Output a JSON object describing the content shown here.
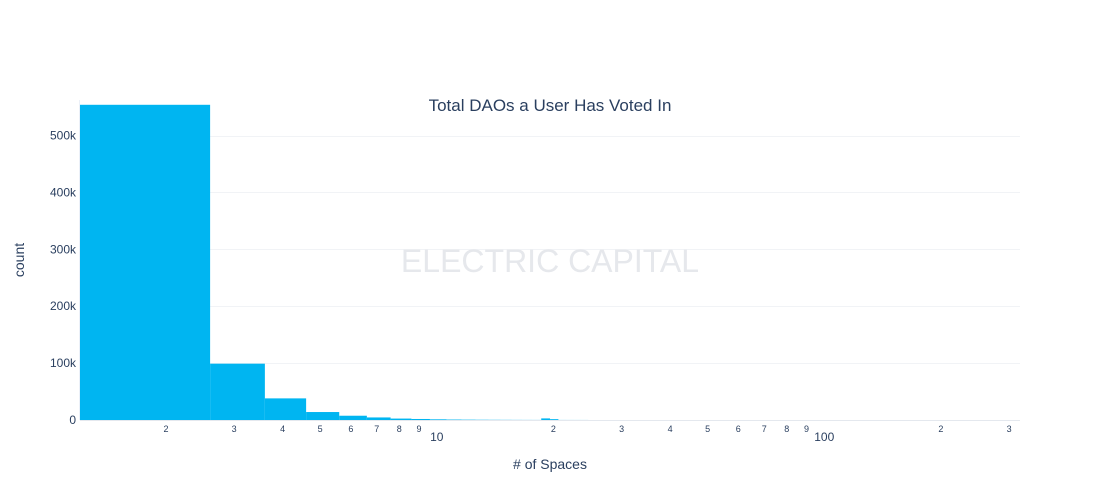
{
  "chart_data": {
    "type": "bar",
    "title": "Total DAOs a User Has Voted In",
    "xlabel": "# of Spaces",
    "ylabel": "count",
    "watermark": "ELECTRIC CAPITAL",
    "x_scale": "log",
    "xlim": [
      1.2,
      320
    ],
    "ylim": [
      0,
      580000
    ],
    "grid": true,
    "bar_color": "#00b5f1",
    "y_ticks": [
      {
        "value": 0,
        "label": "0"
      },
      {
        "value": 100000,
        "label": "100k"
      },
      {
        "value": 200000,
        "label": "200k"
      },
      {
        "value": 300000,
        "label": "300k"
      },
      {
        "value": 400000,
        "label": "400k"
      },
      {
        "value": 500000,
        "label": "500k"
      }
    ],
    "x_minor_ticks": [
      {
        "value": 2,
        "label": "2"
      },
      {
        "value": 3,
        "label": "3"
      },
      {
        "value": 4,
        "label": "4"
      },
      {
        "value": 5,
        "label": "5"
      },
      {
        "value": 6,
        "label": "6"
      },
      {
        "value": 7,
        "label": "7"
      },
      {
        "value": 8,
        "label": "8"
      },
      {
        "value": 9,
        "label": "9"
      },
      {
        "value": 20,
        "label": "2"
      },
      {
        "value": 30,
        "label": "3"
      },
      {
        "value": 40,
        "label": "4"
      },
      {
        "value": 50,
        "label": "5"
      },
      {
        "value": 60,
        "label": "6"
      },
      {
        "value": 70,
        "label": "7"
      },
      {
        "value": 80,
        "label": "8"
      },
      {
        "value": 90,
        "label": "9"
      },
      {
        "value": 200,
        "label": "2"
      },
      {
        "value": 300,
        "label": "3"
      }
    ],
    "x_major_ticks": [
      {
        "value": 10,
        "label": "10"
      },
      {
        "value": 100,
        "label": "100"
      }
    ],
    "bins": [
      {
        "x0": 1.2,
        "x1": 2.6,
        "count": 554000
      },
      {
        "x0": 2.6,
        "x1": 3.6,
        "count": 99000
      },
      {
        "x0": 3.6,
        "x1": 4.6,
        "count": 38000
      },
      {
        "x0": 4.6,
        "x1": 5.6,
        "count": 14000
      },
      {
        "x0": 5.6,
        "x1": 6.6,
        "count": 7500
      },
      {
        "x0": 6.6,
        "x1": 7.6,
        "count": 4500
      },
      {
        "x0": 7.6,
        "x1": 8.6,
        "count": 2500
      },
      {
        "x0": 8.6,
        "x1": 9.6,
        "count": 1800
      },
      {
        "x0": 9.6,
        "x1": 10.6,
        "count": 1200
      },
      {
        "x0": 10.6,
        "x1": 11.6,
        "count": 800
      },
      {
        "x0": 11.6,
        "x1": 12.6,
        "count": 600
      },
      {
        "x0": 12.6,
        "x1": 13.6,
        "count": 450
      },
      {
        "x0": 13.6,
        "x1": 14.6,
        "count": 350
      },
      {
        "x0": 14.6,
        "x1": 15.6,
        "count": 280
      },
      {
        "x0": 15.6,
        "x1": 16.6,
        "count": 220
      },
      {
        "x0": 16.6,
        "x1": 17.6,
        "count": 180
      },
      {
        "x0": 17.6,
        "x1": 18.6,
        "count": 150
      },
      {
        "x0": 18.6,
        "x1": 19.6,
        "count": 2800
      },
      {
        "x0": 19.6,
        "x1": 20.6,
        "count": 1500
      },
      {
        "x0": 20.6,
        "x1": 21.6,
        "count": 120
      },
      {
        "x0": 21.6,
        "x1": 22.6,
        "count": 100
      },
      {
        "x0": 22.6,
        "x1": 23.6,
        "count": 90
      },
      {
        "x0": 23.6,
        "x1": 24.6,
        "count": 80
      }
    ]
  }
}
